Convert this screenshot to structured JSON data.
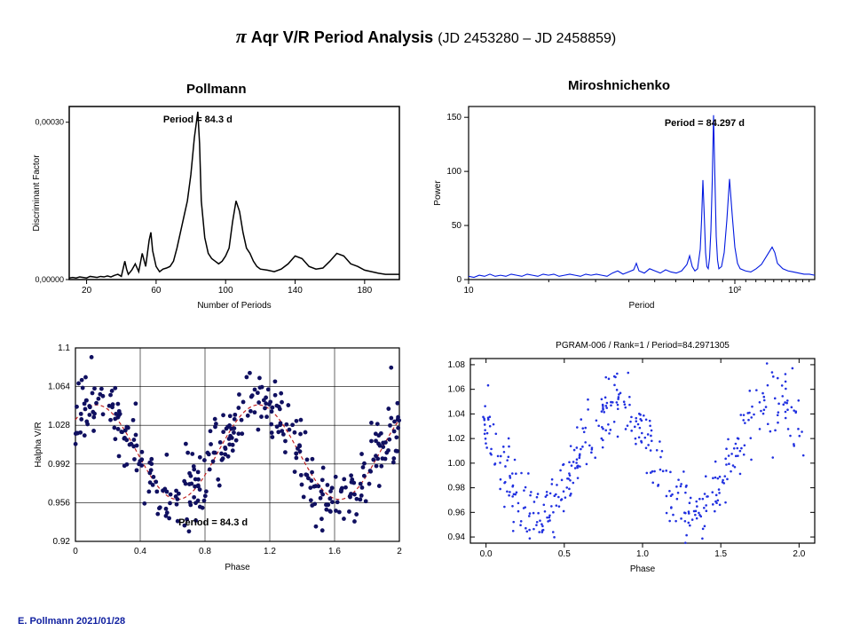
{
  "title_pi": "π",
  "title_main": " Aqr V/R Period Analysis ",
  "title_sub": "(JD 2453280 – JD 2458859)",
  "col1_title": "Pollmann",
  "col2_title": "Miroshnichenko",
  "credit": "E. Pollmann 2021/01/28",
  "panelA": {
    "type": "line",
    "label": "Period = 84.3 d",
    "xlabel": "Number of Periods",
    "ylabel": "Discriminant Factor",
    "xlim": [
      10,
      200
    ],
    "xticks": [
      20,
      60,
      100,
      140,
      180
    ],
    "ylim": [
      0,
      0.00033
    ],
    "yticks": [
      [
        0,
        "0,00000"
      ],
      [
        0.0003,
        "0,00030"
      ]
    ],
    "line_color": "#000000",
    "line_width": 1.5,
    "background": "#ffffff",
    "border": "#000000",
    "series": [
      [
        10,
        0.003
      ],
      [
        12,
        0.004
      ],
      [
        14,
        0.003
      ],
      [
        16,
        0.005
      ],
      [
        18,
        0.004
      ],
      [
        20,
        0.003
      ],
      [
        22,
        0.006
      ],
      [
        24,
        0.005
      ],
      [
        26,
        0.004
      ],
      [
        28,
        0.006
      ],
      [
        30,
        0.005
      ],
      [
        32,
        0.007
      ],
      [
        34,
        0.005
      ],
      [
        36,
        0.008
      ],
      [
        38,
        0.01
      ],
      [
        40,
        0.006
      ],
      [
        42,
        0.035
      ],
      [
        43,
        0.02
      ],
      [
        44,
        0.01
      ],
      [
        46,
        0.018
      ],
      [
        48,
        0.03
      ],
      [
        50,
        0.015
      ],
      [
        52,
        0.05
      ],
      [
        54,
        0.025
      ],
      [
        56,
        0.075
      ],
      [
        57,
        0.09
      ],
      [
        58,
        0.055
      ],
      [
        60,
        0.025
      ],
      [
        62,
        0.015
      ],
      [
        64,
        0.02
      ],
      [
        66,
        0.022
      ],
      [
        68,
        0.025
      ],
      [
        70,
        0.035
      ],
      [
        72,
        0.06
      ],
      [
        74,
        0.09
      ],
      [
        76,
        0.12
      ],
      [
        78,
        0.15
      ],
      [
        80,
        0.2
      ],
      [
        82,
        0.27
      ],
      [
        84,
        0.32
      ],
      [
        85,
        0.26
      ],
      [
        86,
        0.15
      ],
      [
        88,
        0.08
      ],
      [
        90,
        0.05
      ],
      [
        92,
        0.04
      ],
      [
        94,
        0.035
      ],
      [
        96,
        0.03
      ],
      [
        98,
        0.035
      ],
      [
        100,
        0.045
      ],
      [
        102,
        0.06
      ],
      [
        104,
        0.11
      ],
      [
        106,
        0.15
      ],
      [
        108,
        0.13
      ],
      [
        110,
        0.09
      ],
      [
        112,
        0.06
      ],
      [
        114,
        0.05
      ],
      [
        116,
        0.035
      ],
      [
        118,
        0.025
      ],
      [
        120,
        0.02
      ],
      [
        124,
        0.018
      ],
      [
        128,
        0.015
      ],
      [
        132,
        0.02
      ],
      [
        136,
        0.03
      ],
      [
        140,
        0.045
      ],
      [
        144,
        0.04
      ],
      [
        148,
        0.025
      ],
      [
        152,
        0.02
      ],
      [
        156,
        0.022
      ],
      [
        160,
        0.035
      ],
      [
        164,
        0.05
      ],
      [
        168,
        0.045
      ],
      [
        172,
        0.03
      ],
      [
        176,
        0.025
      ],
      [
        180,
        0.018
      ],
      [
        184,
        0.015
      ],
      [
        188,
        0.012
      ],
      [
        192,
        0.01
      ],
      [
        196,
        0.01
      ],
      [
        200,
        0.01
      ]
    ]
  },
  "panelB": {
    "type": "line-logx",
    "label": "Period = 84.297 d",
    "xlabel": "Period",
    "ylabel": "Power",
    "xlim_log": [
      1,
      2.3
    ],
    "xticks_log": [
      [
        1,
        "10"
      ],
      [
        2,
        "10²"
      ]
    ],
    "xminor_log": [
      1.301,
      1.477,
      1.602,
      1.699,
      1.778,
      1.845,
      1.903,
      1.954,
      2.041,
      2.079,
      2.114,
      2.146,
      2.176,
      2.204,
      2.23,
      2.255,
      2.279
    ],
    "ylim": [
      0,
      160
    ],
    "yticks": [
      0,
      50,
      100,
      150
    ],
    "line_color": "#0018e0",
    "line_width": 1.1,
    "background": "#ffffff",
    "border": "#000000",
    "tick_color": "#000000",
    "series": [
      [
        1.0,
        3
      ],
      [
        1.02,
        2
      ],
      [
        1.04,
        4
      ],
      [
        1.06,
        3
      ],
      [
        1.08,
        5
      ],
      [
        1.1,
        3
      ],
      [
        1.12,
        4
      ],
      [
        1.14,
        3
      ],
      [
        1.16,
        5
      ],
      [
        1.18,
        4
      ],
      [
        1.2,
        3
      ],
      [
        1.22,
        5
      ],
      [
        1.24,
        4
      ],
      [
        1.26,
        3
      ],
      [
        1.28,
        5
      ],
      [
        1.3,
        4
      ],
      [
        1.32,
        5
      ],
      [
        1.34,
        3
      ],
      [
        1.36,
        4
      ],
      [
        1.38,
        5
      ],
      [
        1.4,
        4
      ],
      [
        1.42,
        3
      ],
      [
        1.44,
        5
      ],
      [
        1.46,
        4
      ],
      [
        1.48,
        5
      ],
      [
        1.5,
        4
      ],
      [
        1.52,
        3
      ],
      [
        1.54,
        6
      ],
      [
        1.56,
        8
      ],
      [
        1.58,
        5
      ],
      [
        1.6,
        7
      ],
      [
        1.62,
        9
      ],
      [
        1.63,
        15
      ],
      [
        1.64,
        8
      ],
      [
        1.66,
        6
      ],
      [
        1.68,
        10
      ],
      [
        1.7,
        8
      ],
      [
        1.72,
        6
      ],
      [
        1.74,
        9
      ],
      [
        1.76,
        7
      ],
      [
        1.78,
        6
      ],
      [
        1.8,
        8
      ],
      [
        1.82,
        14
      ],
      [
        1.83,
        22
      ],
      [
        1.84,
        12
      ],
      [
        1.85,
        8
      ],
      [
        1.86,
        10
      ],
      [
        1.87,
        28
      ],
      [
        1.875,
        55
      ],
      [
        1.88,
        92
      ],
      [
        1.885,
        60
      ],
      [
        1.89,
        25
      ],
      [
        1.895,
        12
      ],
      [
        1.9,
        10
      ],
      [
        1.905,
        20
      ],
      [
        1.91,
        45
      ],
      [
        1.915,
        90
      ],
      [
        1.92,
        152
      ],
      [
        1.925,
        95
      ],
      [
        1.93,
        40
      ],
      [
        1.935,
        18
      ],
      [
        1.94,
        10
      ],
      [
        1.95,
        12
      ],
      [
        1.96,
        25
      ],
      [
        1.97,
        55
      ],
      [
        1.98,
        93
      ],
      [
        1.99,
        60
      ],
      [
        2.0,
        30
      ],
      [
        2.01,
        15
      ],
      [
        2.02,
        10
      ],
      [
        2.04,
        8
      ],
      [
        2.06,
        7
      ],
      [
        2.08,
        10
      ],
      [
        2.1,
        14
      ],
      [
        2.12,
        22
      ],
      [
        2.14,
        30
      ],
      [
        2.15,
        25
      ],
      [
        2.16,
        15
      ],
      [
        2.18,
        10
      ],
      [
        2.2,
        8
      ],
      [
        2.22,
        7
      ],
      [
        2.24,
        6
      ],
      [
        2.26,
        5
      ],
      [
        2.28,
        5
      ],
      [
        2.3,
        4
      ]
    ]
  },
  "panelC": {
    "type": "scatter",
    "label": "Period = 84.3 d",
    "xlabel": "Phase",
    "ylabel": "Halpha V/R",
    "xlim": [
      0,
      2
    ],
    "xticks": [
      0,
      0.4,
      0.8,
      1.2,
      1.6,
      2
    ],
    "ylim": [
      0.92,
      1.1
    ],
    "yticks": [
      0.92,
      0.956,
      0.992,
      1.028,
      1.064,
      1.1
    ],
    "grid": true,
    "grid_color": "#000000",
    "border": "#000000",
    "background": "#ffffff",
    "marker_color": "#101060",
    "marker_size": 2.4,
    "fit_color": "#c02020",
    "fit_dash": "4 3",
    "fit": {
      "amp": 0.044,
      "mean": 1.003,
      "phase0": 0.13,
      "cycles": 1
    },
    "n_points": 360,
    "noise": 0.016
  },
  "panelD": {
    "type": "scatter",
    "title": "PGRAM-006 / Rank=1 / Period=84.2971305",
    "xlabel": "Phase",
    "xlim": [
      -0.1,
      2.1
    ],
    "xticks": [
      0.0,
      0.5,
      1.0,
      1.5,
      2.0
    ],
    "ylim": [
      0.935,
      1.085
    ],
    "yticks": [
      0.94,
      0.96,
      0.98,
      1.0,
      1.02,
      1.04,
      1.06,
      1.08
    ],
    "border": "#000000",
    "background": "#ffffff",
    "tick_color": "#000000",
    "marker_color": "#2030e0",
    "marker_size": 1.3,
    "fit": {
      "amp": 0.046,
      "mean": 1.004,
      "phase0": 0.58,
      "cycles": 1
    },
    "n_points": 420,
    "noise": 0.014
  }
}
